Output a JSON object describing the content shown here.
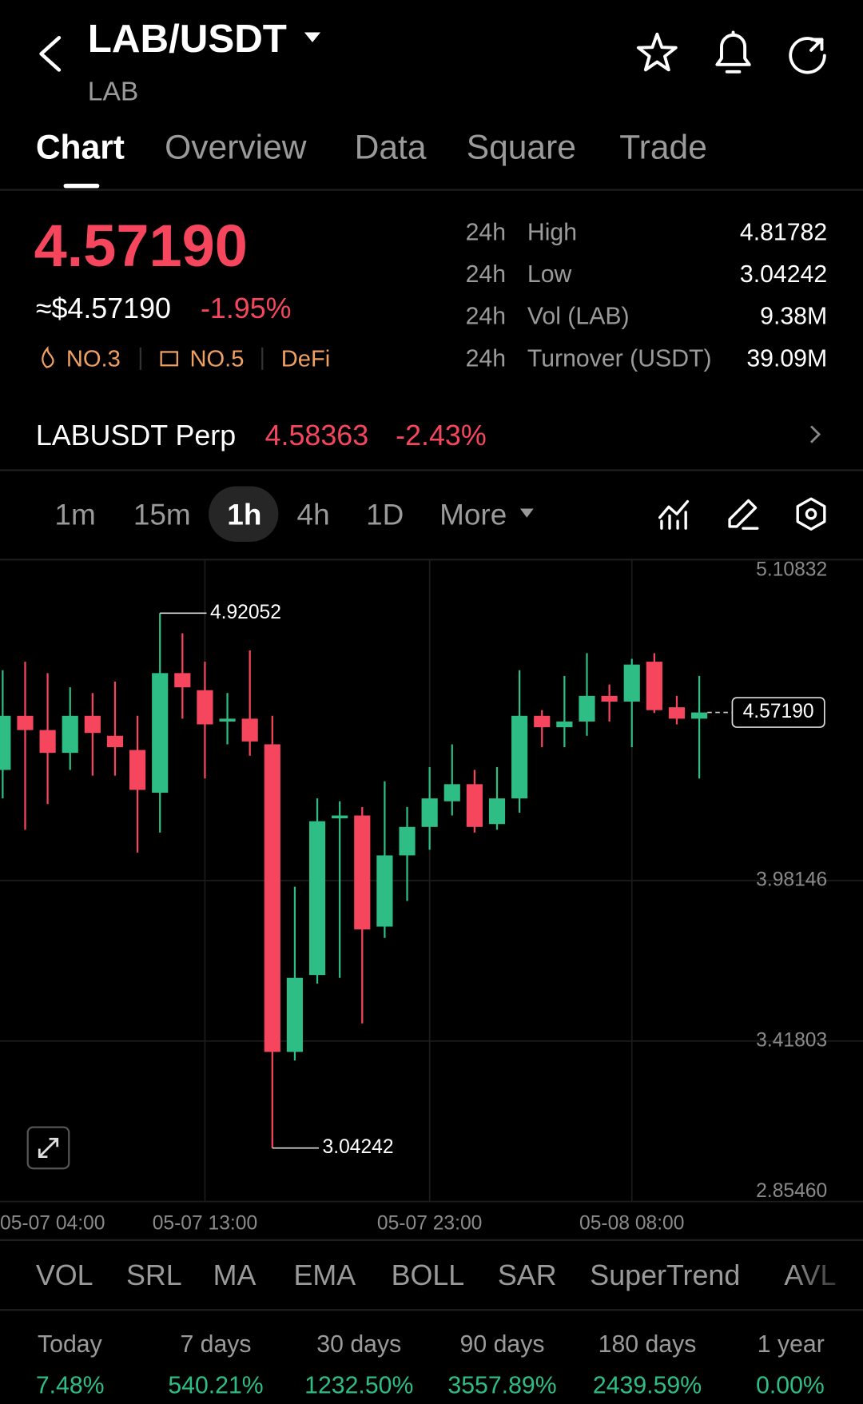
{
  "header": {
    "title": "LAB/USDT",
    "subtitle": "LAB",
    "tabs": [
      "Chart",
      "Overview",
      "Data",
      "Square",
      "Trade"
    ]
  },
  "price": {
    "last": "4.57190",
    "usd": "≈$4.57190",
    "change": "-1.95%",
    "tags": [
      "NO.3",
      "NO.5",
      "DeFi"
    ]
  },
  "stats": {
    "rows": [
      [
        "24h",
        "High",
        "4.81782"
      ],
      [
        "24h",
        "Low",
        "3.04242"
      ],
      [
        "24h",
        "Vol (LAB)",
        "9.38M"
      ],
      [
        "24h",
        "Turnover (USDT)",
        "39.09M"
      ]
    ]
  },
  "perp": {
    "name": "LABUSDT Perp",
    "price": "4.58363",
    "change": "-2.43%"
  },
  "intervals": [
    "1m",
    "15m",
    "1h",
    "4h",
    "1D",
    "More"
  ],
  "chart_data": {
    "type": "candlestick",
    "up_color": "#2ebd85",
    "down_color": "#f6465d",
    "grid": true,
    "categories": [
      "05-07 04:00",
      null,
      null,
      null,
      null,
      null,
      null,
      null,
      null,
      "05-07 13:00",
      null,
      null,
      null,
      null,
      null,
      null,
      null,
      null,
      null,
      "05-07 23:00",
      null,
      null,
      null,
      null,
      null,
      null,
      null,
      null,
      "05-08 08:00",
      null,
      null,
      null
    ],
    "open": [
      4.37,
      4.56,
      4.51,
      4.43,
      4.56,
      4.49,
      4.44,
      4.29,
      4.71,
      4.65,
      4.54,
      4.55,
      4.46,
      3.38,
      3.65,
      4.2,
      4.21,
      3.82,
      4.07,
      4.17,
      4.26,
      4.32,
      4.18,
      4.27,
      4.56,
      4.52,
      4.54,
      4.63,
      4.61,
      4.75,
      4.59,
      4.55
    ],
    "high": [
      4.72,
      4.75,
      4.71,
      4.66,
      4.64,
      4.68,
      4.56,
      4.92052,
      4.85,
      4.75,
      4.64,
      4.79,
      4.56,
      3.96,
      4.27,
      4.26,
      4.24,
      4.33,
      4.24,
      4.38,
      4.46,
      4.37,
      4.38,
      4.72,
      4.58,
      4.7,
      4.78,
      4.67,
      4.76,
      4.78,
      4.63,
      4.7
    ],
    "low": [
      4.27,
      4.16,
      4.25,
      4.37,
      4.35,
      4.35,
      4.08,
      4.15,
      4.55,
      4.34,
      4.46,
      4.42,
      3.04242,
      3.35,
      3.62,
      3.64,
      3.48,
      3.78,
      3.91,
      4.09,
      4.21,
      4.15,
      4.16,
      4.22,
      4.45,
      4.45,
      4.49,
      4.54,
      4.45,
      4.57,
      4.53,
      4.34
    ],
    "close": [
      4.56,
      4.51,
      4.43,
      4.56,
      4.5,
      4.45,
      4.3,
      4.71,
      4.66,
      4.53,
      4.55,
      4.47,
      3.38,
      3.64,
      4.19,
      4.21,
      3.81,
      4.07,
      4.17,
      4.27,
      4.32,
      4.17,
      4.27,
      4.56,
      4.52,
      4.54,
      4.63,
      4.61,
      4.74,
      4.58,
      4.55,
      4.5719
    ],
    "ylim": [
      2.8546,
      5.10832
    ],
    "yticks": [
      5.10832,
      3.98146,
      3.41803,
      {
        "value": 2.8546,
        "label": "2.85460"
      }
    ],
    "last_price": {
      "value": 4.5719,
      "label": "4.57190"
    },
    "high_marker": {
      "value": 4.92052,
      "label": "4.92052"
    },
    "low_marker": {
      "value": 3.04242,
      "label": "3.04242"
    }
  },
  "indicators": [
    "VOL",
    "SRL",
    "MA",
    "EMA",
    "BOLL",
    "SAR",
    "SuperTrend",
    "AVL"
  ],
  "performance": {
    "labels": [
      "Today",
      "7 days",
      "30 days",
      "90 days",
      "180 days",
      "1 year"
    ],
    "values": [
      "7.48%",
      "540.21%",
      "1232.50%",
      "3557.89%",
      "2439.59%",
      "0.00%"
    ]
  }
}
